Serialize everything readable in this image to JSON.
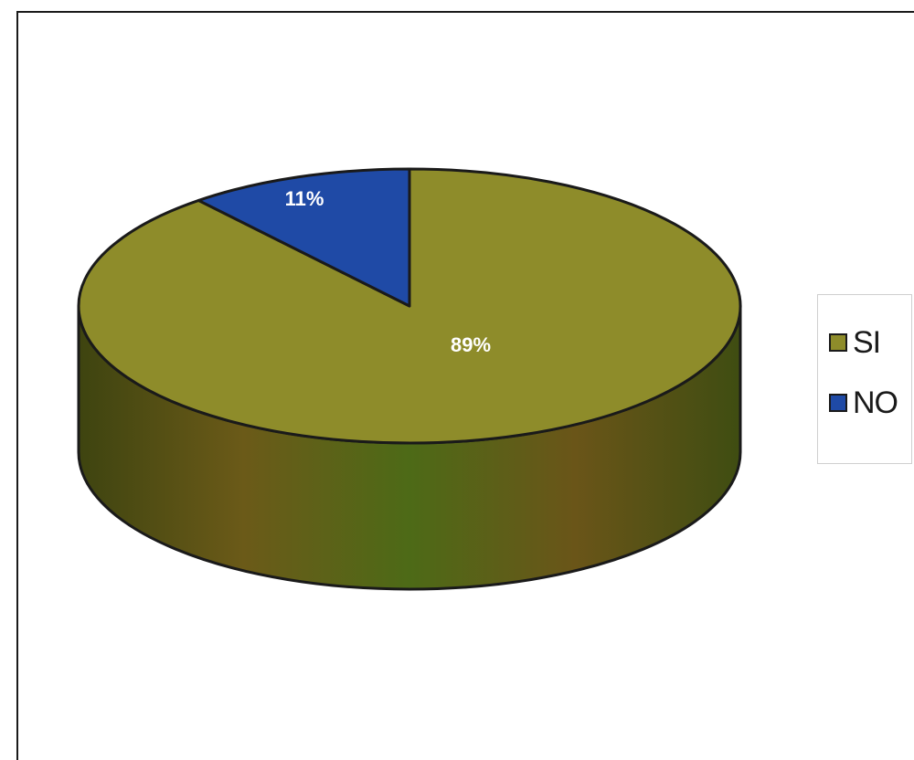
{
  "chart_data": {
    "type": "pie",
    "style": "3d",
    "categories": [
      "SI",
      "NO"
    ],
    "values": [
      89,
      11
    ],
    "data_labels": [
      "89%",
      "11%"
    ],
    "colors": [
      "#8e8c2a",
      "#1f4aa6"
    ],
    "legend_position": "right",
    "title": ""
  },
  "legend": {
    "items": [
      {
        "label": "SI",
        "color": "#8e8c2a"
      },
      {
        "label": "NO",
        "color": "#1f4aa6"
      }
    ]
  }
}
